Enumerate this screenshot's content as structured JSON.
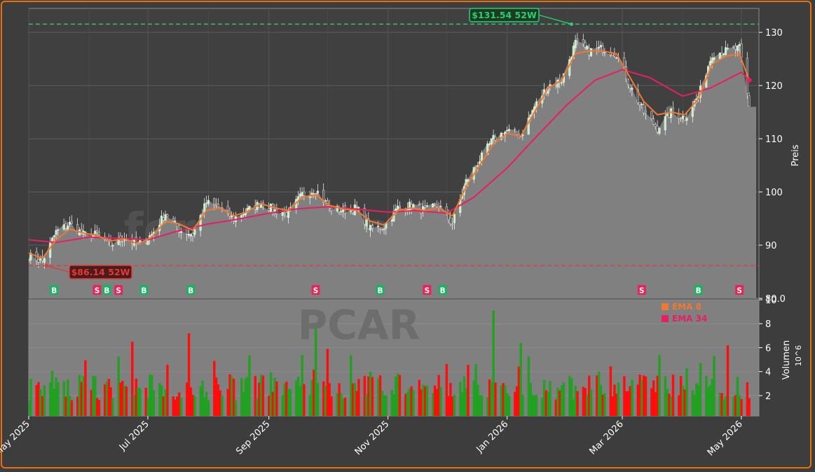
{
  "chart_data": [
    {
      "type": "candlestick",
      "watermark": "forexsignale.trade",
      "ylabel": "Preis",
      "ylim": [
        80,
        134.5
      ],
      "yticks": [
        "80.0",
        "90",
        "100",
        "110",
        "120",
        "130"
      ],
      "grid": true,
      "x_ticks": [
        "May 2025",
        "Jul 2025",
        "Sep 2025",
        "Nov 2025",
        "Jan 2026",
        "Mar 2026",
        "May 2026"
      ],
      "x_tick_dates": [
        "2025-05-01",
        "2025-07-01",
        "2025-09-01",
        "2025-11-01",
        "2026-01-01",
        "2026-03-01",
        "2026-05-01"
      ],
      "x_range": [
        "2025-05-01",
        "2026-05-10"
      ],
      "close_points": [
        [
          "2025-05-01",
          88.0
        ],
        [
          "2025-05-08",
          87.0
        ],
        [
          "2025-05-15",
          92.5
        ],
        [
          "2025-05-22",
          94.0
        ],
        [
          "2025-05-29",
          92.0
        ],
        [
          "2025-06-05",
          92.0
        ],
        [
          "2025-06-12",
          90.0
        ],
        [
          "2025-06-19",
          91.5
        ],
        [
          "2025-06-26",
          90.0
        ],
        [
          "2025-07-03",
          92.0
        ],
        [
          "2025-07-10",
          96.0
        ],
        [
          "2025-07-17",
          93.0
        ],
        [
          "2025-07-24",
          92.0
        ],
        [
          "2025-07-31",
          98.0
        ],
        [
          "2025-08-07",
          97.0
        ],
        [
          "2025-08-14",
          95.0
        ],
        [
          "2025-08-21",
          96.5
        ],
        [
          "2025-08-28",
          98.0
        ],
        [
          "2025-09-04",
          96.5
        ],
        [
          "2025-09-11",
          96.0
        ],
        [
          "2025-09-18",
          99.5
        ],
        [
          "2025-09-25",
          100.5
        ],
        [
          "2025-10-02",
          97.0
        ],
        [
          "2025-10-09",
          96.5
        ],
        [
          "2025-10-16",
          97.0
        ],
        [
          "2025-10-23",
          93.0
        ],
        [
          "2025-10-30",
          93.5
        ],
        [
          "2025-11-06",
          97.0
        ],
        [
          "2025-11-13",
          97.5
        ],
        [
          "2025-11-20",
          96.5
        ],
        [
          "2025-11-27",
          97.5
        ],
        [
          "2025-12-04",
          94.0
        ],
        [
          "2025-12-11",
          102.0
        ],
        [
          "2025-12-18",
          106.0
        ],
        [
          "2025-12-25",
          110.0
        ],
        [
          "2026-01-01",
          111.5
        ],
        [
          "2026-01-08",
          110.5
        ],
        [
          "2026-01-15",
          116.0
        ],
        [
          "2026-01-22",
          120.0
        ],
        [
          "2026-01-29",
          121.0
        ],
        [
          "2026-02-05",
          128.0
        ],
        [
          "2026-02-12",
          126.5
        ],
        [
          "2026-02-19",
          127.0
        ],
        [
          "2026-02-26",
          126.0
        ],
        [
          "2026-03-05",
          120.0
        ],
        [
          "2026-03-12",
          115.0
        ],
        [
          "2026-03-19",
          112.0
        ],
        [
          "2026-03-26",
          115.0
        ],
        [
          "2026-04-02",
          114.0
        ],
        [
          "2026-04-09",
          118.0
        ],
        [
          "2026-04-16",
          126.0
        ],
        [
          "2026-04-23",
          126.5
        ],
        [
          "2026-04-30",
          127.0
        ],
        [
          "2026-05-05",
          116.0
        ],
        [
          "2026-05-10",
          116.0
        ]
      ],
      "ema_fast_points": [
        [
          "2025-05-01",
          88.5
        ],
        [
          "2025-05-08",
          87.5
        ],
        [
          "2025-05-15",
          91.0
        ],
        [
          "2025-05-22",
          93.0
        ],
        [
          "2025-05-29",
          92.3
        ],
        [
          "2025-06-05",
          91.8
        ],
        [
          "2025-06-12",
          90.8
        ],
        [
          "2025-06-19",
          91.2
        ],
        [
          "2025-06-26",
          90.2
        ],
        [
          "2025-07-03",
          91.5
        ],
        [
          "2025-07-10",
          94.5
        ],
        [
          "2025-07-17",
          94.0
        ],
        [
          "2025-07-24",
          92.8
        ],
        [
          "2025-07-31",
          96.5
        ],
        [
          "2025-08-07",
          97.0
        ],
        [
          "2025-08-14",
          95.5
        ],
        [
          "2025-08-21",
          96.3
        ],
        [
          "2025-08-28",
          97.8
        ],
        [
          "2025-09-04",
          97.0
        ],
        [
          "2025-09-11",
          96.5
        ],
        [
          "2025-09-18",
          99.0
        ],
        [
          "2025-09-25",
          99.5
        ],
        [
          "2025-10-02",
          97.5
        ],
        [
          "2025-10-09",
          96.8
        ],
        [
          "2025-10-16",
          96.5
        ],
        [
          "2025-10-23",
          94.5
        ],
        [
          "2025-10-30",
          93.8
        ],
        [
          "2025-11-06",
          96.5
        ],
        [
          "2025-11-13",
          97.0
        ],
        [
          "2025-11-20",
          96.5
        ],
        [
          "2025-11-27",
          97.0
        ],
        [
          "2025-12-04",
          95.5
        ],
        [
          "2025-12-11",
          101.0
        ],
        [
          "2025-12-18",
          105.0
        ],
        [
          "2025-12-25",
          109.0
        ],
        [
          "2026-01-01",
          111.0
        ],
        [
          "2026-01-08",
          110.5
        ],
        [
          "2026-01-15",
          115.0
        ],
        [
          "2026-01-22",
          119.5
        ],
        [
          "2026-01-29",
          121.0
        ],
        [
          "2026-02-05",
          126.0
        ],
        [
          "2026-02-12",
          126.5
        ],
        [
          "2026-02-19",
          126.5
        ],
        [
          "2026-02-26",
          126.0
        ],
        [
          "2026-03-05",
          121.5
        ],
        [
          "2026-03-12",
          117.0
        ],
        [
          "2026-03-19",
          114.5
        ],
        [
          "2026-03-26",
          115.0
        ],
        [
          "2026-04-02",
          114.5
        ],
        [
          "2026-04-09",
          117.5
        ],
        [
          "2026-04-16",
          124.0
        ],
        [
          "2026-04-23",
          125.5
        ],
        [
          "2026-04-30",
          126.0
        ],
        [
          "2026-05-05",
          121.0
        ]
      ],
      "ema_slow_points": [
        [
          "2025-05-01",
          91.0
        ],
        [
          "2025-05-15",
          90.5
        ],
        [
          "2025-06-01",
          91.5
        ],
        [
          "2025-06-15",
          91.3
        ],
        [
          "2025-07-01",
          91.0
        ],
        [
          "2025-07-15",
          92.5
        ],
        [
          "2025-08-01",
          94.0
        ],
        [
          "2025-08-15",
          94.8
        ],
        [
          "2025-09-01",
          96.0
        ],
        [
          "2025-09-15",
          96.8
        ],
        [
          "2025-10-01",
          97.2
        ],
        [
          "2025-10-15",
          96.8
        ],
        [
          "2025-11-01",
          96.2
        ],
        [
          "2025-11-15",
          96.5
        ],
        [
          "2025-12-01",
          96.0
        ],
        [
          "2025-12-15",
          99.0
        ],
        [
          "2026-01-01",
          104.5
        ],
        [
          "2026-01-15",
          110.0
        ],
        [
          "2026-02-01",
          116.5
        ],
        [
          "2026-02-15",
          121.0
        ],
        [
          "2026-03-01",
          123.0
        ],
        [
          "2026-03-15",
          121.5
        ],
        [
          "2026-04-01",
          118.0
        ],
        [
          "2026-04-15",
          119.5
        ],
        [
          "2026-05-01",
          122.5
        ],
        [
          "2026-05-05",
          121.0
        ]
      ],
      "annotations": [
        {
          "label": "$131.54 52W",
          "value": 131.54,
          "date": "2026-02-03",
          "color": "#2ecc71"
        },
        {
          "label": "$86.14 52W",
          "value": 86.14,
          "date": "2025-05-10",
          "color": "#e53935"
        }
      ],
      "signals": [
        {
          "date": "2025-05-14",
          "type": "B"
        },
        {
          "date": "2025-06-05",
          "type": "S"
        },
        {
          "date": "2025-06-10",
          "type": "B"
        },
        {
          "date": "2025-06-16",
          "type": "S"
        },
        {
          "date": "2025-06-29",
          "type": "B"
        },
        {
          "date": "2025-07-23",
          "type": "B"
        },
        {
          "date": "2025-09-25",
          "type": "S"
        },
        {
          "date": "2025-10-28",
          "type": "B"
        },
        {
          "date": "2025-11-21",
          "type": "S"
        },
        {
          "date": "2025-11-29",
          "type": "B"
        },
        {
          "date": "2026-03-11",
          "type": "S"
        },
        {
          "date": "2026-04-09",
          "type": "B"
        },
        {
          "date": "2026-04-30",
          "type": "S"
        }
      ],
      "colors": {
        "up": "#22aa22",
        "down": "#ff0000",
        "ema_fast": "#f07830",
        "ema_slow": "#e81e63",
        "buy": "#18b460",
        "sell": "#e8245a",
        "area": "#808080"
      }
    },
    {
      "type": "bar",
      "watermark": "PCAR",
      "ylabel": "Volumen",
      "ylabel_unit": "10^6",
      "ylim": [
        0.3,
        10
      ],
      "yticks": [
        "2",
        "4",
        "6",
        "8",
        "10"
      ],
      "legend": [
        {
          "label": "EMA 8",
          "color": "#f07830"
        },
        {
          "label": "EMA 34",
          "color": "#e81e63"
        }
      ],
      "legend_position": "top-right",
      "volume_seed": 7,
      "spikes": [
        [
          "2025-06-23",
          6.5
        ],
        [
          "2025-07-22",
          7.2
        ],
        [
          "2025-09-25",
          7.6
        ],
        [
          "2025-10-01",
          5.9
        ],
        [
          "2025-12-25",
          9.1
        ],
        [
          "2026-01-08",
          6.4
        ],
        [
          "2026-02-01",
          6.1
        ],
        [
          "2026-03-20",
          5.4
        ],
        [
          "2026-04-24",
          6.2
        ]
      ]
    }
  ]
}
